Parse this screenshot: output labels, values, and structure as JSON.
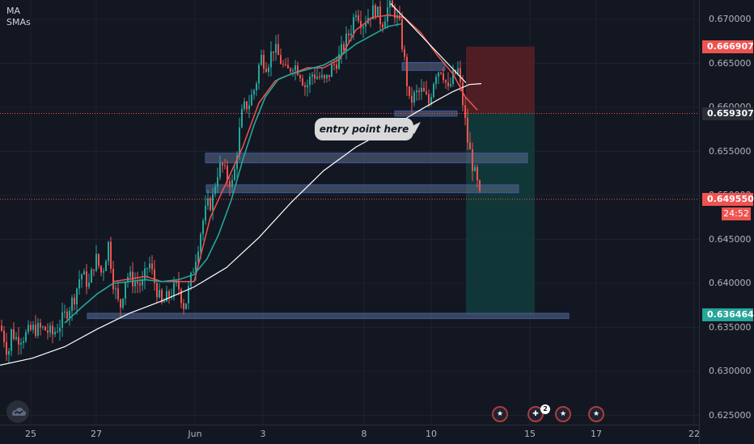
{
  "legend": {
    "line1": "MA",
    "line2": "SMAs"
  },
  "callout_text": "entry point here",
  "countdown": "24:52",
  "colors": {
    "background": "#131722",
    "up": "#26a69a",
    "down": "#ef5350",
    "ma_fast": "#26a69a",
    "ma_red": "#ef5350",
    "ma_slow": "#ffffff",
    "zone": "#4a5a7a",
    "stop_zone": "#5a2026",
    "target_zone": "#123a3a"
  },
  "events": [
    {
      "icon": "australia-flag-icon",
      "badge": ""
    },
    {
      "icon": "switzerland-flag-icon",
      "badge": "2"
    },
    {
      "icon": "australia-flag-icon",
      "badge": ""
    },
    {
      "icon": "australia-flag-icon",
      "badge": ""
    }
  ],
  "chart_data": {
    "type": "line",
    "symbol_type": "candlestick",
    "ylim": [
      0.6245,
      0.6725
    ],
    "y_ticks": [
      "0.670000",
      "0.665000",
      "0.660000",
      "0.655000",
      "0.650000",
      "0.645000",
      "0.640000",
      "0.635000",
      "0.630000",
      "0.625000"
    ],
    "x_ticks": [
      "25",
      "27",
      "Jun",
      "3",
      "8",
      "10",
      "15",
      "17",
      "22"
    ],
    "price_labels": [
      {
        "value": "0.666907",
        "color": "#ef5350"
      },
      {
        "value": "0.659307",
        "color": "#2a2e39"
      },
      {
        "value": "0.649550",
        "color": "#ef5350"
      },
      {
        "value": "0.636464",
        "color": "#26a69a"
      }
    ],
    "current_price": 0.64955,
    "entry_price": 0.659307,
    "stop_price": 0.666907,
    "target_price": 0.636464,
    "price_path": [
      [
        0,
        0.6352
      ],
      [
        6,
        0.6335
      ],
      [
        10,
        0.6318
      ],
      [
        14,
        0.6345
      ],
      [
        20,
        0.6338
      ],
      [
        30,
        0.634
      ],
      [
        40,
        0.6348
      ],
      [
        55,
        0.6348
      ],
      [
        65,
        0.6342
      ],
      [
        75,
        0.6355
      ],
      [
        85,
        0.6372
      ],
      [
        92,
        0.6385
      ],
      [
        100,
        0.6412
      ],
      [
        110,
        0.6398
      ],
      [
        118,
        0.643
      ],
      [
        126,
        0.641
      ],
      [
        134,
        0.6445
      ],
      [
        140,
        0.6402
      ],
      [
        148,
        0.637
      ],
      [
        156,
        0.641
      ],
      [
        166,
        0.6402
      ],
      [
        176,
        0.6398
      ],
      [
        184,
        0.6425
      ],
      [
        192,
        0.6398
      ],
      [
        200,
        0.6375
      ],
      [
        210,
        0.6388
      ],
      [
        220,
        0.6398
      ],
      [
        228,
        0.6372
      ],
      [
        236,
        0.6405
      ],
      [
        244,
        0.644
      ],
      [
        250,
        0.6468
      ],
      [
        256,
        0.6488
      ],
      [
        262,
        0.6492
      ],
      [
        268,
        0.6525
      ],
      [
        274,
        0.6535
      ],
      [
        280,
        0.652
      ],
      [
        288,
        0.6512
      ],
      [
        294,
        0.656
      ],
      [
        300,
        0.6598
      ],
      [
        308,
        0.6605
      ],
      [
        316,
        0.6625
      ],
      [
        322,
        0.6658
      ],
      [
        330,
        0.6648
      ],
      [
        338,
        0.6668
      ],
      [
        346,
        0.6655
      ],
      [
        354,
        0.6638
      ],
      [
        362,
        0.665
      ],
      [
        370,
        0.6642
      ],
      [
        378,
        0.6622
      ],
      [
        386,
        0.6638
      ],
      [
        394,
        0.6635
      ],
      [
        402,
        0.6628
      ],
      [
        410,
        0.6645
      ],
      [
        418,
        0.6655
      ],
      [
        426,
        0.6672
      ],
      [
        434,
        0.669
      ],
      [
        440,
        0.6712
      ],
      [
        448,
        0.6695
      ],
      [
        456,
        0.6705
      ],
      [
        464,
        0.6712
      ],
      [
        472,
        0.6695
      ],
      [
        480,
        0.6715
      ],
      [
        488,
        0.6708
      ],
      [
        494,
        0.6692
      ],
      [
        500,
        0.6652
      ],
      [
        506,
        0.6605
      ],
      [
        514,
        0.6615
      ],
      [
        522,
        0.6618
      ],
      [
        530,
        0.6605
      ],
      [
        538,
        0.664
      ],
      [
        546,
        0.6645
      ],
      [
        554,
        0.6618
      ],
      [
        560,
        0.6635
      ],
      [
        566,
        0.6642
      ],
      [
        572,
        0.6605
      ],
      [
        578,
        0.6562
      ],
      [
        584,
        0.6535
      ],
      [
        590,
        0.6512
      ],
      [
        595,
        0.6488
      ]
    ],
    "ma_fast_path": [
      [
        80,
        0.6355
      ],
      [
        100,
        0.6372
      ],
      [
        120,
        0.6388
      ],
      [
        140,
        0.64
      ],
      [
        160,
        0.6402
      ],
      [
        180,
        0.6404
      ],
      [
        200,
        0.6402
      ],
      [
        220,
        0.6404
      ],
      [
        240,
        0.641
      ],
      [
        256,
        0.6428
      ],
      [
        270,
        0.6455
      ],
      [
        286,
        0.6495
      ],
      [
        300,
        0.654
      ],
      [
        314,
        0.658
      ],
      [
        328,
        0.6612
      ],
      [
        344,
        0.6632
      ],
      [
        360,
        0.6638
      ],
      [
        380,
        0.6643
      ],
      [
        400,
        0.6648
      ],
      [
        420,
        0.6658
      ],
      [
        440,
        0.6672
      ],
      [
        460,
        0.6682
      ],
      [
        480,
        0.6692
      ],
      [
        496,
        0.6695
      ]
    ],
    "ma_red_path": [
      [
        140,
        0.6402
      ],
      [
        160,
        0.6405
      ],
      [
        180,
        0.6408
      ],
      [
        200,
        0.6402
      ],
      [
        220,
        0.6402
      ],
      [
        240,
        0.6402
      ],
      [
        260,
        0.6475
      ],
      [
        280,
        0.6515
      ],
      [
        300,
        0.6555
      ],
      [
        320,
        0.6605
      ],
      [
        340,
        0.663
      ],
      [
        360,
        0.6638
      ],
      [
        380,
        0.6645
      ],
      [
        400,
        0.6645
      ],
      [
        420,
        0.6655
      ],
      [
        440,
        0.6688
      ],
      [
        460,
        0.6702
      ],
      [
        480,
        0.6705
      ],
      [
        500,
        0.6702
      ],
      [
        520,
        0.6685
      ],
      [
        540,
        0.666
      ],
      [
        560,
        0.6638
      ],
      [
        575,
        0.6612
      ],
      [
        590,
        0.6597
      ]
    ],
    "ma_slow_path": [
      [
        0,
        0.6307
      ],
      [
        40,
        0.6315
      ],
      [
        80,
        0.6328
      ],
      [
        120,
        0.6348
      ],
      [
        160,
        0.6366
      ],
      [
        200,
        0.638
      ],
      [
        240,
        0.6396
      ],
      [
        280,
        0.6418
      ],
      [
        320,
        0.6452
      ],
      [
        360,
        0.6492
      ],
      [
        400,
        0.6528
      ],
      [
        440,
        0.6555
      ],
      [
        480,
        0.6575
      ],
      [
        510,
        0.6592
      ],
      [
        540,
        0.6608
      ],
      [
        560,
        0.6618
      ],
      [
        580,
        0.6626
      ],
      [
        595,
        0.6627
      ]
    ],
    "trendline": [
      [
        483,
        0.6718
      ],
      [
        576,
        0.6628
      ]
    ],
    "zones": [
      {
        "x1": 497,
        "x2": 550,
        "y1": 0.6651,
        "y2": 0.6642
      },
      {
        "x1": 488,
        "x2": 565,
        "y1": 0.6596,
        "y2": 0.659
      },
      {
        "x1": 254,
        "x2": 652,
        "y1": 0.6548,
        "y2": 0.6537
      },
      {
        "x1": 255,
        "x2": 641,
        "y1": 0.6512,
        "y2": 0.6503
      },
      {
        "x1": 108,
        "x2": 703,
        "y1": 0.6366,
        "y2": 0.636
      }
    ]
  }
}
